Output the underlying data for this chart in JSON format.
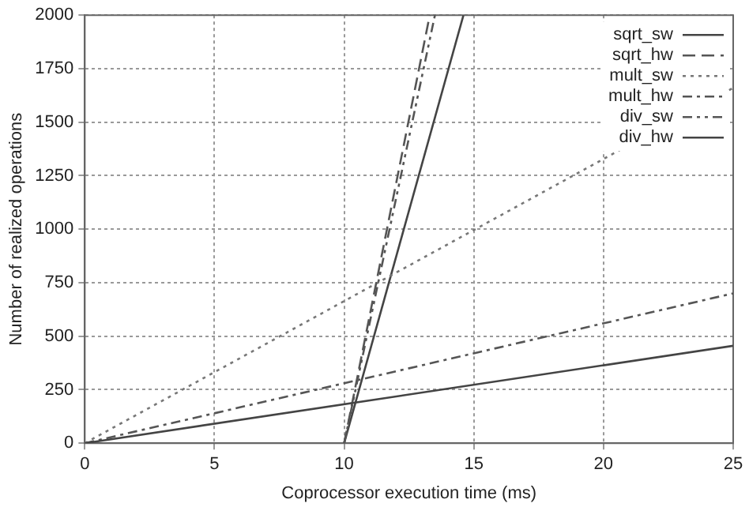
{
  "chart_data": {
    "type": "line",
    "xlabel": "Coprocessor execution time (ms)",
    "ylabel": "Number of realized operations",
    "xlim": [
      0,
      25
    ],
    "xticks": [
      0,
      5,
      10,
      15,
      20,
      25
    ],
    "ylim": [
      0,
      2000
    ],
    "yticks": [
      0,
      250,
      500,
      750,
      1000,
      1250,
      1500,
      1750,
      2000
    ],
    "grid": true,
    "legend": "top right",
    "marker": "none",
    "series": [
      {
        "name": "sqrt_sw",
        "color": "#444444",
        "line_style": "solid",
        "x": [
          0,
          25
        ],
        "values": [
          0,
          455
        ]
      },
      {
        "name": "sqrt_hw",
        "color": "#555555",
        "line_style": "dashed",
        "x": [
          10,
          13.3
        ],
        "values": [
          0,
          2000
        ]
      },
      {
        "name": "mult_sw",
        "color": "#777777",
        "line_style": "dotted",
        "x": [
          0,
          25
        ],
        "values": [
          0,
          1660
        ]
      },
      {
        "name": "mult_hw",
        "color": "#555555",
        "line_style": "dashdot",
        "x": [
          0,
          25
        ],
        "values": [
          0,
          700
        ]
      },
      {
        "name": "div_sw",
        "color": "#555555",
        "line_style": "dashdotdot",
        "x": [
          10,
          13.5
        ],
        "values": [
          0,
          2000
        ]
      },
      {
        "name": "div_hw",
        "color": "#444444",
        "line_style": "solid",
        "x": [
          10,
          14.6
        ],
        "values": [
          0,
          2000
        ]
      }
    ]
  }
}
